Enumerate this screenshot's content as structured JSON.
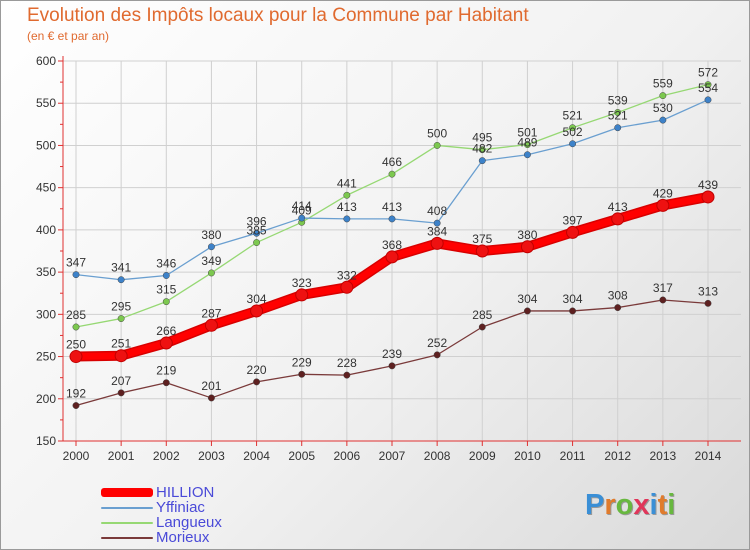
{
  "title": "Evolution des Impôts locaux pour la Commune par Habitant",
  "subtitle": "(en € et par an)",
  "logo_text": "Proxiti",
  "logo_colors": [
    "#3a8fd6",
    "#e07b2c",
    "#68b83f",
    "#e0365a",
    "#3a8fd6",
    "#e07b2c",
    "#68b83f"
  ],
  "chart_data": {
    "type": "line",
    "x": [
      2000,
      2001,
      2002,
      2003,
      2004,
      2005,
      2006,
      2007,
      2008,
      2009,
      2010,
      2011,
      2012,
      2013,
      2014
    ],
    "ylim": [
      150,
      600
    ],
    "yticks": [
      150,
      200,
      250,
      300,
      350,
      400,
      450,
      500,
      550,
      600
    ],
    "grid": true,
    "legend_position": "bottom-left",
    "series": [
      {
        "name": "HILLION",
        "color": "#ff0000",
        "point_color": "#ee1111",
        "label_color": "#333333",
        "values": [
          250,
          251,
          266,
          287,
          304,
          323,
          332,
          368,
          384,
          375,
          380,
          397,
          413,
          429,
          439
        ]
      },
      {
        "name": "Yffiniac",
        "color": "#6a9fd0",
        "point_color": "#3d82c9",
        "label_color": "#333333",
        "values": [
          347,
          341,
          346,
          380,
          396,
          414,
          413,
          413,
          408,
          482,
          489,
          502,
          521,
          530,
          554
        ]
      },
      {
        "name": "Langueux",
        "color": "#96d873",
        "point_color": "#7cc84f",
        "label_color": "#333333",
        "values": [
          285,
          295,
          315,
          349,
          385,
          409,
          441,
          466,
          500,
          495,
          501,
          521,
          539,
          559,
          572
        ]
      },
      {
        "name": "Morieux",
        "color": "#7a3a3a",
        "point_color": "#5e2020",
        "label_color": "#333333",
        "values": [
          192,
          207,
          219,
          201,
          220,
          229,
          228,
          239,
          252,
          285,
          304,
          304,
          308,
          317,
          313
        ]
      }
    ]
  }
}
